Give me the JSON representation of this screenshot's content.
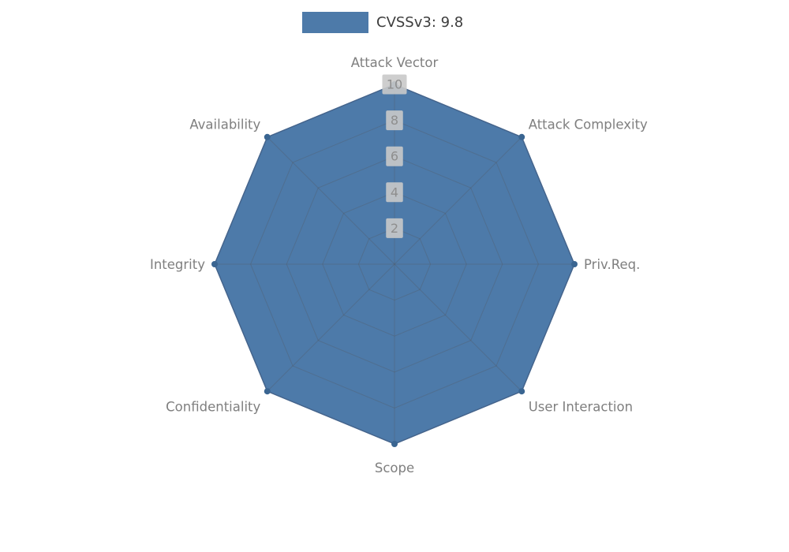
{
  "legend": {
    "label": "CVSSv3: 9.8"
  },
  "chart_data": {
    "type": "radar",
    "title": "",
    "categories": [
      "Attack Vector",
      "Attack Complexity",
      "Priv.Req.",
      "User Interaction",
      "Scope",
      "Confidentiality",
      "Integrity",
      "Availability"
    ],
    "series": [
      {
        "name": "CVSSv3: 9.8",
        "values": [
          10,
          10,
          10,
          10,
          10,
          10,
          10,
          10
        ]
      }
    ],
    "ticks": [
      2,
      4,
      6,
      8,
      10
    ],
    "rmax": 10,
    "grid": true,
    "legend_position": "top-center",
    "colors": {
      "fill": "#4d7aa9",
      "edge": "#41699b",
      "marker": "#3a6591",
      "grid_line": "#55585e",
      "tick_bg": "#c9c9c9",
      "tick_text": "#8e8e8e",
      "label_text": "#7f7f7f",
      "legend_text": "#3c3c3c"
    }
  }
}
